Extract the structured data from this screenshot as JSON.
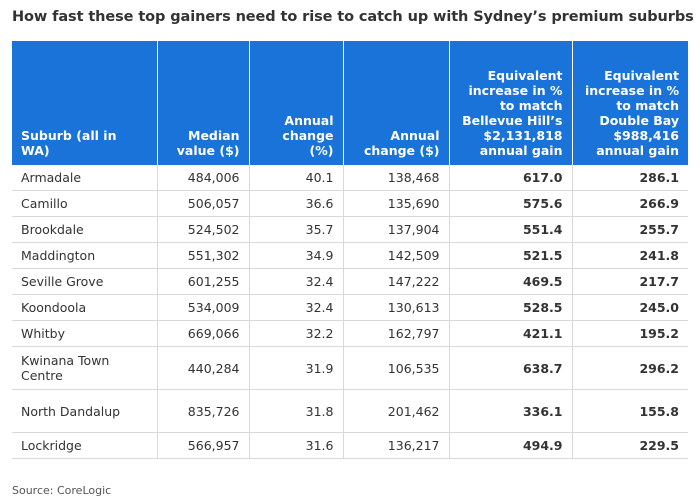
{
  "title": "How fast these top gainers need to rise to catch up with Sydney’s premium suburbs",
  "headers": {
    "suburb": "Suburb (all in WA)",
    "median": "Median value ($)",
    "annual_pct": "Annual change (%)",
    "annual_dollar": "Annual change ($)",
    "bellevue": "Equivalent increase in % to match Bellevue Hill’s $2,131,818 annual gain",
    "doublebay": "Equivalent increase in % to match Double Bay $988,416 annual gain"
  },
  "rows": [
    {
      "suburb": "Armadale",
      "median": "484,006",
      "annual_pct": "40.1",
      "annual_dollar": "138,468",
      "bellevue": "617.0",
      "doublebay": "286.1"
    },
    {
      "suburb": "Camillo",
      "median": "506,057",
      "annual_pct": "36.6",
      "annual_dollar": "135,690",
      "bellevue": "575.6",
      "doublebay": "266.9"
    },
    {
      "suburb": "Brookdale",
      "median": "524,502",
      "annual_pct": "35.7",
      "annual_dollar": "137,904",
      "bellevue": "551.4",
      "doublebay": "255.7"
    },
    {
      "suburb": "Maddington",
      "median": "551,302",
      "annual_pct": "34.9",
      "annual_dollar": "142,509",
      "bellevue": "521.5",
      "doublebay": "241.8"
    },
    {
      "suburb": "Seville Grove",
      "median": "601,255",
      "annual_pct": "32.4",
      "annual_dollar": "147,222",
      "bellevue": "469.5",
      "doublebay": "217.7"
    },
    {
      "suburb": "Koondoola",
      "median": "534,009",
      "annual_pct": "32.4",
      "annual_dollar": "130,613",
      "bellevue": "528.5",
      "doublebay": "245.0"
    },
    {
      "suburb": "Whitby",
      "median": "669,066",
      "annual_pct": "32.2",
      "annual_dollar": "162,797",
      "bellevue": "421.1",
      "doublebay": "195.2"
    },
    {
      "suburb": "Kwinana Town Centre",
      "median": "440,284",
      "annual_pct": "31.9",
      "annual_dollar": "106,535",
      "bellevue": "638.7",
      "doublebay": "296.2"
    },
    {
      "suburb": "North Dandalup",
      "median": "835,726",
      "annual_pct": "31.8",
      "annual_dollar": "201,462",
      "bellevue": "336.1",
      "doublebay": "155.8"
    },
    {
      "suburb": "Lockridge",
      "median": "566,957",
      "annual_pct": "31.6",
      "annual_dollar": "136,217",
      "bellevue": "494.9",
      "doublebay": "229.5"
    }
  ],
  "source": "Source: CoreLogic"
}
